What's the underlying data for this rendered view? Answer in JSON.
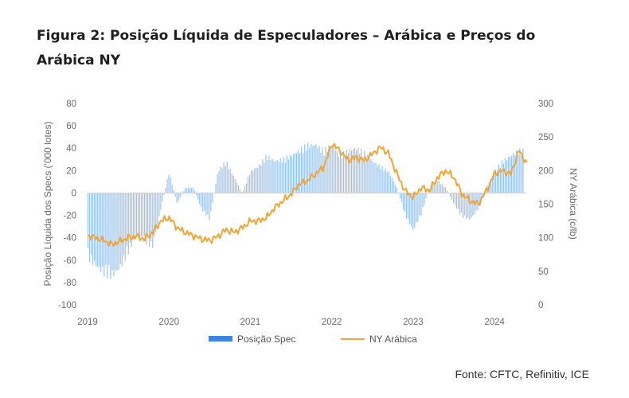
{
  "header": {
    "title": "Figura 2: Posição Líquida de Especuladores – Arábica e Preços do Arábica NY"
  },
  "footer": {
    "source": "Fonte: CFTC, Refinitiv, ICE"
  },
  "colors": {
    "bars": "#9cc3ea",
    "legend_bar": "#3b86e0",
    "line": "#f0a637",
    "zero_line": "#d0d0d0",
    "tick_text": "#6b6b6b"
  },
  "chart_data": {
    "type": "bar+line",
    "title": "Figura 2: Posição Líquida de Especuladores – Arábica e Preços do Arábica NY",
    "ylabel_left": "Posição Líquida dos Specs ('000 lotes)",
    "ylabel_right": "NY Arábica (c/lb)",
    "ylim_left": [
      -100,
      80
    ],
    "ylim_right": [
      0,
      300
    ],
    "yticks_left": [
      "80",
      "60",
      "40",
      "20",
      "0",
      "-20",
      "-40",
      "-60",
      "-80",
      "-100"
    ],
    "yticks_right": [
      "300",
      "250",
      "200",
      "150",
      "100",
      "50",
      "0"
    ],
    "x_ticks": [
      "2019",
      "2020",
      "2021",
      "2022",
      "2023",
      "2024"
    ],
    "xlim": [
      2019.0,
      2024.4
    ],
    "grid": false,
    "legend_position": "bottom",
    "series": [
      {
        "name": "Posição Spec",
        "type": "bar",
        "axis": "left",
        "x": [
          2019.0,
          2019.1,
          2019.2,
          2019.3,
          2019.4,
          2019.5,
          2019.6,
          2019.7,
          2019.8,
          2019.9,
          2020.0,
          2020.1,
          2020.2,
          2020.3,
          2020.4,
          2020.5,
          2020.6,
          2020.7,
          2020.8,
          2020.9,
          2021.0,
          2021.1,
          2021.2,
          2021.3,
          2021.4,
          2021.5,
          2021.6,
          2021.7,
          2021.8,
          2021.9,
          2022.0,
          2022.1,
          2022.2,
          2022.3,
          2022.4,
          2022.5,
          2022.6,
          2022.7,
          2022.8,
          2022.9,
          2023.0,
          2023.1,
          2023.2,
          2023.3,
          2023.4,
          2023.5,
          2023.6,
          2023.7,
          2023.8,
          2023.9,
          2024.0,
          2024.1,
          2024.2,
          2024.3
        ],
        "values": [
          -60,
          -68,
          -75,
          -78,
          -70,
          -55,
          -40,
          -45,
          -50,
          -15,
          20,
          -10,
          5,
          5,
          -15,
          -25,
          20,
          30,
          15,
          0,
          20,
          25,
          35,
          30,
          32,
          35,
          40,
          45,
          45,
          40,
          45,
          35,
          40,
          42,
          38,
          30,
          25,
          20,
          5,
          -20,
          -35,
          -20,
          5,
          12,
          5,
          -10,
          -22,
          -25,
          -15,
          5,
          20,
          30,
          35,
          40
        ]
      },
      {
        "name": "NY Arábica",
        "type": "line",
        "axis": "right",
        "x": [
          2019.0,
          2019.1,
          2019.2,
          2019.3,
          2019.4,
          2019.5,
          2019.6,
          2019.7,
          2019.8,
          2019.9,
          2020.0,
          2020.1,
          2020.2,
          2020.3,
          2020.4,
          2020.5,
          2020.6,
          2020.7,
          2020.8,
          2020.9,
          2021.0,
          2021.1,
          2021.2,
          2021.3,
          2021.4,
          2021.5,
          2021.6,
          2021.7,
          2021.8,
          2021.9,
          2022.0,
          2022.1,
          2022.2,
          2022.3,
          2022.4,
          2022.5,
          2022.6,
          2022.7,
          2022.8,
          2022.9,
          2023.0,
          2023.1,
          2023.2,
          2023.3,
          2023.4,
          2023.5,
          2023.6,
          2023.7,
          2023.8,
          2023.9,
          2024.0,
          2024.1,
          2024.2,
          2024.3,
          2024.4
        ],
        "values": [
          103,
          100,
          96,
          90,
          95,
          100,
          102,
          98,
          108,
          125,
          130,
          115,
          108,
          103,
          98,
          96,
          102,
          112,
          108,
          115,
          125,
          125,
          130,
          145,
          155,
          165,
          180,
          185,
          195,
          205,
          240,
          230,
          215,
          220,
          215,
          225,
          235,
          225,
          195,
          170,
          160,
          175,
          170,
          190,
          200,
          190,
          165,
          155,
          150,
          170,
          195,
          200,
          195,
          230,
          210
        ]
      }
    ]
  }
}
